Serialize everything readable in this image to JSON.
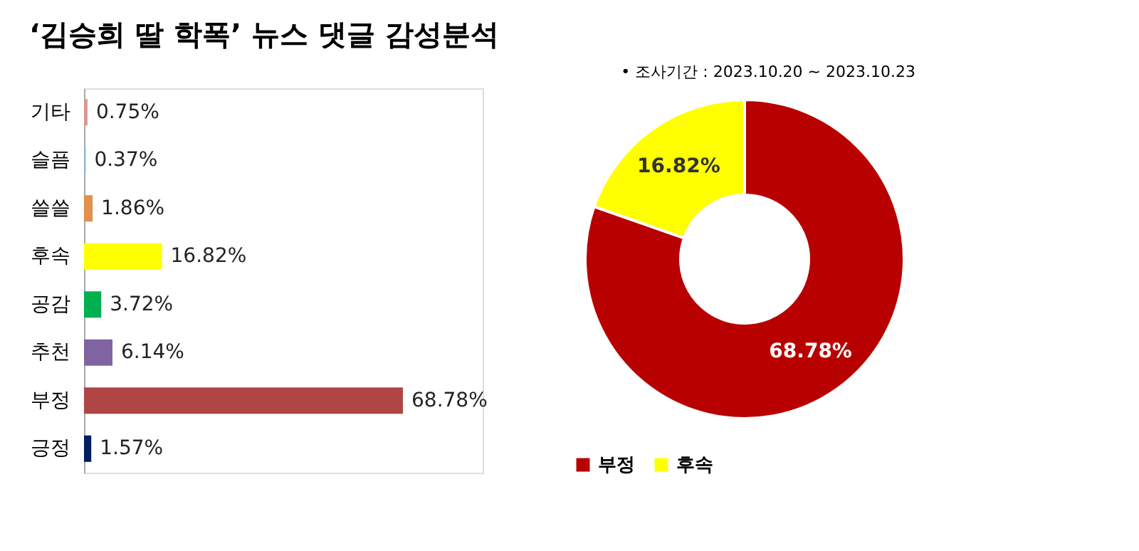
{
  "chart_data": [
    {
      "type": "bar",
      "orientation": "horizontal",
      "title": "‘김승희 딸 학폭’ 뉴스 댓글 감성분석",
      "categories": [
        "기타",
        "슬픔",
        "쓸쓸",
        "후속",
        "공감",
        "추천",
        "부정",
        "긍정"
      ],
      "values": [
        0.75,
        0.37,
        1.86,
        16.82,
        3.72,
        6.14,
        68.78,
        1.57
      ],
      "value_labels": [
        "0.75%",
        "0.37%",
        "1.86%",
        "16.82%",
        "3.72%",
        "6.14%",
        "68.78%",
        "1.57%"
      ],
      "colors": [
        "#d99694",
        "#8eb4e3",
        "#e2904a",
        "#ffff00",
        "#00b050",
        "#8064a2",
        "#b04545",
        "#002060"
      ],
      "grid": false,
      "tick_labels": "y"
    },
    {
      "type": "donut",
      "annotations": [
        "•    조사기간 : 2023.10.20 ~ 2023.10.23"
      ],
      "categories": [
        "부정",
        "후속"
      ],
      "values": [
        68.78,
        16.82
      ],
      "value_labels": [
        "68.78%",
        "16.82%"
      ],
      "colors": [
        "#b80000",
        "#ffff00"
      ],
      "legend": "bottom"
    }
  ]
}
